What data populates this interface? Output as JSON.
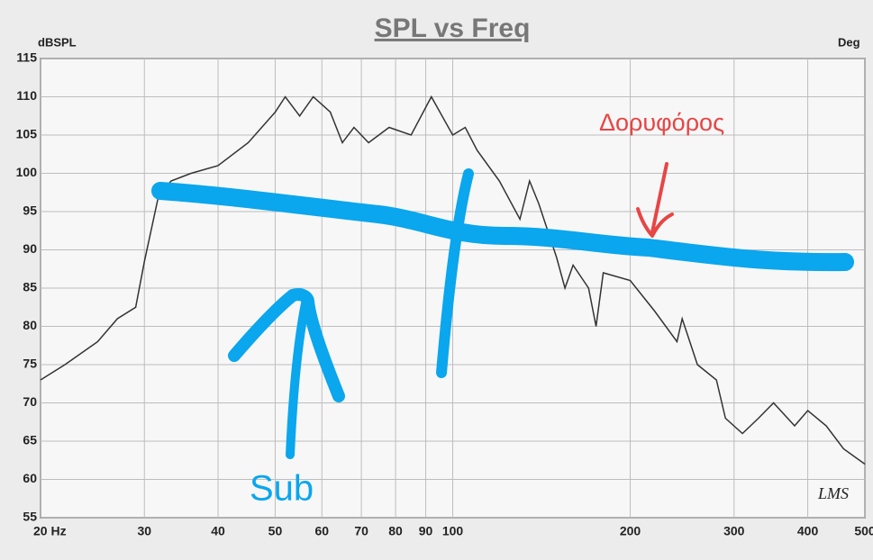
{
  "chart_data": {
    "type": "line",
    "title": "SPL vs Freq",
    "y_label": "dBSPL",
    "y2_label": "Deg",
    "xscale": "log",
    "grid": true,
    "xlim": [
      20,
      500
    ],
    "ylim": [
      55,
      115
    ],
    "xticks": [
      {
        "value": 20,
        "label": "20 Hz"
      },
      30,
      40,
      50,
      60,
      70,
      80,
      90,
      100,
      200,
      300,
      400,
      500
    ],
    "yticks": [
      55,
      60,
      65,
      70,
      75,
      80,
      85,
      90,
      95,
      100,
      105,
      110,
      115
    ],
    "series": [
      {
        "name": "SPL",
        "color": "#333333",
        "x": [
          20,
          22,
          25,
          27,
          29,
          30,
          31.7,
          33.3,
          36,
          40,
          45,
          50,
          52,
          55,
          58,
          62,
          65,
          68,
          72,
          78,
          85,
          92,
          100,
          105,
          110,
          120,
          130,
          135,
          140,
          150,
          155,
          160,
          170,
          175,
          180,
          200,
          220,
          240,
          245,
          260,
          280,
          290,
          310,
          330,
          350,
          380,
          400,
          430,
          460,
          500
        ],
        "values": [
          73,
          75,
          78,
          81,
          82.5,
          88.5,
          97,
          99,
          100,
          101,
          104,
          108,
          110,
          107.5,
          110,
          108,
          104,
          106,
          104,
          106,
          105,
          110,
          105,
          106,
          103,
          99,
          94,
          99,
          96,
          89,
          85,
          88,
          85,
          80,
          87,
          86,
          82,
          78,
          81,
          75,
          73,
          68,
          66,
          68,
          70,
          67,
          69,
          67,
          64,
          62
        ]
      }
    ],
    "annotations": [
      "Sub",
      "Δορυφόρος",
      "LMS"
    ]
  }
}
